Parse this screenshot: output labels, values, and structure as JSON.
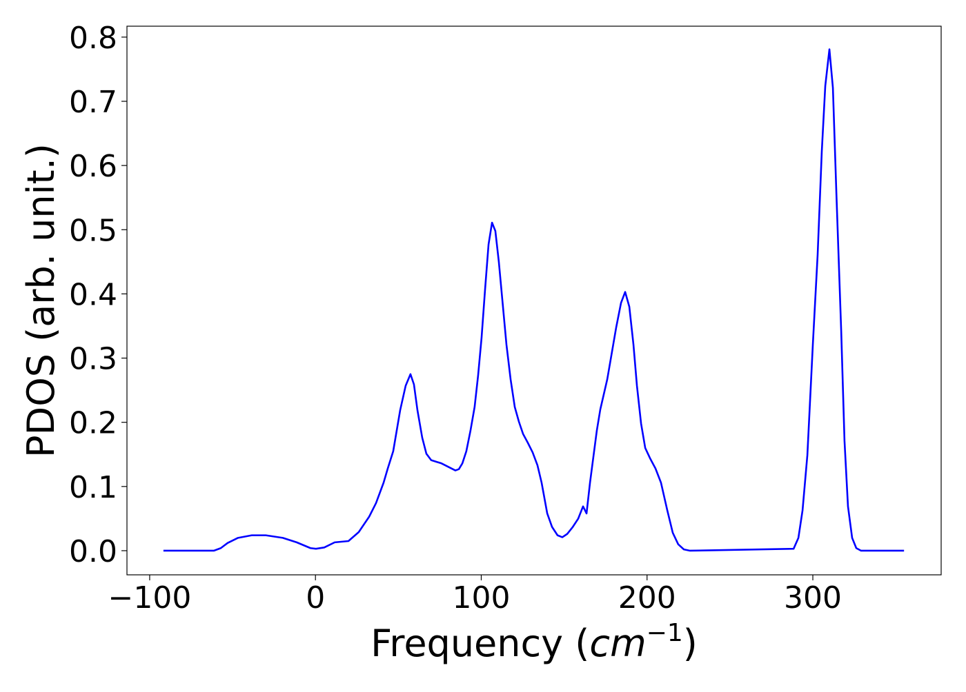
{
  "chart_data": {
    "type": "line",
    "xlabel": [
      "Frequency (",
      "cm",
      "−1",
      ")"
    ],
    "ylabel": "PDOS (arb. unit.)",
    "color": "#0000ff",
    "x": [
      -91.7,
      -61.3,
      -57.1,
      -53,
      -46.7,
      -38.4,
      -30,
      -19.7,
      -11.3,
      -3,
      0.3,
      5.3,
      11.6,
      19.9,
      26.1,
      32.4,
      36.5,
      41.1,
      43.6,
      46.9,
      51.1,
      54.4,
      57.3,
      59.4,
      61.5,
      64.4,
      66.9,
      69.8,
      76,
      84.4,
      86.5,
      88.6,
      91,
      93.5,
      96,
      98.1,
      100.2,
      102.3,
      104.4,
      106.5,
      108.5,
      110.6,
      112.7,
      115.2,
      117.7,
      120.2,
      122.7,
      125.2,
      128.1,
      131,
      133.9,
      136.4,
      139.8,
      142.7,
      146,
      148.9,
      151.8,
      155.2,
      158.5,
      161.4,
      163.5,
      165.6,
      169.7,
      171.8,
      176,
      181.4,
      184.3,
      186.8,
      189.3,
      191.8,
      193.9,
      196.4,
      198.9,
      201.8,
      205.1,
      208.4,
      212.2,
      215.5,
      218.8,
      222.2,
      225.9,
      288.4,
      291.3,
      293.8,
      296.7,
      300,
      302.9,
      305.4,
      307.5,
      310,
      312.1,
      314.2,
      317.1,
      319.1,
      321.2,
      323.7,
      326.2,
      329.1,
      355
    ],
    "values": [
      0,
      0,
      0.004,
      0.012,
      0.02,
      0.024,
      0.024,
      0.02,
      0.013,
      0.004,
      0.003,
      0.005,
      0.013,
      0.015,
      0.029,
      0.053,
      0.074,
      0.106,
      0.128,
      0.155,
      0.219,
      0.257,
      0.275,
      0.259,
      0.219,
      0.176,
      0.151,
      0.141,
      0.136,
      0.125,
      0.127,
      0.136,
      0.155,
      0.187,
      0.224,
      0.273,
      0.332,
      0.407,
      0.477,
      0.511,
      0.498,
      0.45,
      0.391,
      0.321,
      0.267,
      0.224,
      0.201,
      0.182,
      0.168,
      0.153,
      0.133,
      0.106,
      0.058,
      0.037,
      0.024,
      0.021,
      0.026,
      0.037,
      0.05,
      0.069,
      0.058,
      0.106,
      0.187,
      0.22,
      0.267,
      0.348,
      0.386,
      0.403,
      0.38,
      0.321,
      0.257,
      0.198,
      0.16,
      0.144,
      0.128,
      0.106,
      0.063,
      0.028,
      0.01,
      0.002,
      0,
      0.003,
      0.02,
      0.063,
      0.149,
      0.321,
      0.461,
      0.622,
      0.724,
      0.781,
      0.721,
      0.557,
      0.343,
      0.171,
      0.069,
      0.02,
      0.004,
      0,
      0
    ],
    "xlim": [
      -113.7,
      377.4
    ],
    "ylim": [
      -0.0376,
      0.817
    ],
    "xticks": [
      {
        "value": -100,
        "label": "−100"
      },
      0,
      100,
      200,
      300
    ],
    "yticks": [
      {
        "value": 0,
        "label": "0.0"
      },
      0.1,
      0.2,
      0.3,
      0.4,
      0.5,
      0.6,
      0.7,
      0.8
    ]
  }
}
